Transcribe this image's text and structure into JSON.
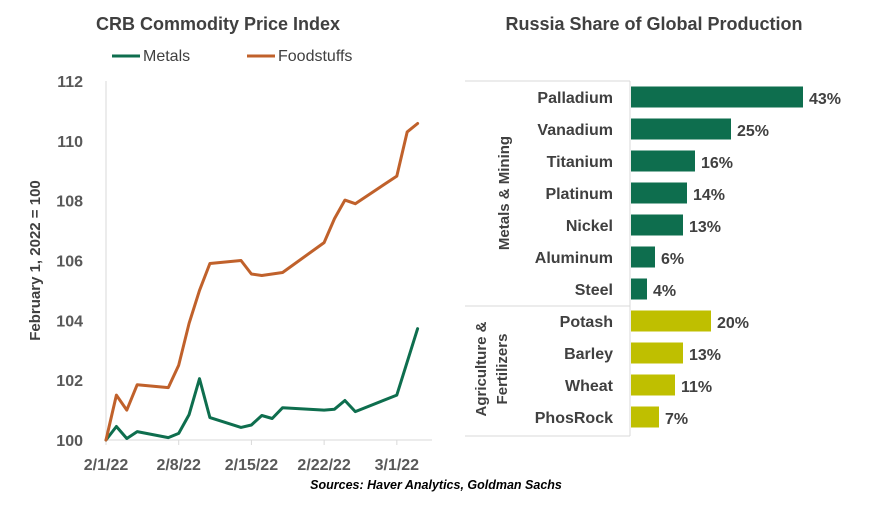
{
  "chart_data": [
    {
      "type": "line",
      "title": "CRB Commodity Price Index",
      "ylabel": "February 1, 2022 = 100",
      "xlabel": "",
      "ylim": [
        100,
        112
      ],
      "yticks": [
        "100",
        "102",
        "104",
        "106",
        "108",
        "110",
        "112"
      ],
      "xticks": [
        "2/1/22",
        "2/8/22",
        "2/15/22",
        "2/22/22",
        "3/1/22"
      ],
      "xlim": [
        "2022-02-01",
        "2022-03-04"
      ],
      "grid": false,
      "legend": "top-left",
      "series": [
        {
          "name": "Metals",
          "color": "#0e6e4e",
          "points": [
            [
              "2022-02-01",
              100.0
            ],
            [
              "2022-02-02",
              100.45
            ],
            [
              "2022-02-03",
              100.05
            ],
            [
              "2022-02-04",
              100.28
            ],
            [
              "2022-02-07",
              100.08
            ],
            [
              "2022-02-08",
              100.22
            ],
            [
              "2022-02-09",
              100.85
            ],
            [
              "2022-02-10",
              102.05
            ],
            [
              "2022-02-11",
              100.75
            ],
            [
              "2022-02-14",
              100.42
            ],
            [
              "2022-02-15",
              100.5
            ],
            [
              "2022-02-16",
              100.82
            ],
            [
              "2022-02-17",
              100.72
            ],
            [
              "2022-02-18",
              101.08
            ],
            [
              "2022-02-22",
              101.0
            ],
            [
              "2022-02-23",
              101.03
            ],
            [
              "2022-02-24",
              101.32
            ],
            [
              "2022-02-25",
              100.95
            ],
            [
              "2022-03-01",
              101.5
            ],
            [
              "2022-03-03",
              103.72
            ]
          ]
        },
        {
          "name": "Foodstuffs",
          "color": "#c0612b",
          "points": [
            [
              "2022-02-01",
              100.0
            ],
            [
              "2022-02-02",
              101.5
            ],
            [
              "2022-02-03",
              101.0
            ],
            [
              "2022-02-04",
              101.85
            ],
            [
              "2022-02-07",
              101.75
            ],
            [
              "2022-02-08",
              102.5
            ],
            [
              "2022-02-09",
              103.9
            ],
            [
              "2022-02-10",
              105.0
            ],
            [
              "2022-02-11",
              105.9
            ],
            [
              "2022-02-14",
              106.0
            ],
            [
              "2022-02-15",
              105.55
            ],
            [
              "2022-02-16",
              105.5
            ],
            [
              "2022-02-18",
              105.6
            ],
            [
              "2022-02-22",
              106.6
            ],
            [
              "2022-02-23",
              107.4
            ],
            [
              "2022-02-24",
              108.02
            ],
            [
              "2022-02-25",
              107.9
            ],
            [
              "2022-03-01",
              108.82
            ],
            [
              "2022-03-02",
              110.3
            ],
            [
              "2022-03-03",
              110.58
            ]
          ]
        }
      ]
    },
    {
      "type": "bar",
      "orientation": "horizontal",
      "title": "Russia Share of Global Production",
      "unit": "%",
      "groups": [
        {
          "name": "Metals & Mining",
          "color": "#0e6e4e",
          "categories": [
            "Palladium",
            "Vanadium",
            "Titanium",
            "Platinum",
            "Nickel",
            "Aluminum",
            "Steel"
          ],
          "values": [
            43,
            25,
            16,
            14,
            13,
            6,
            4
          ],
          "labels": [
            "43%",
            "25%",
            "16%",
            "14%",
            "13%",
            "6%",
            "4%"
          ]
        },
        {
          "name": "Agriculture & Fertilizers",
          "name_lines": [
            "Agriculture &",
            "Fertilizers"
          ],
          "color": "#bfbf00",
          "categories": [
            "Potash",
            "Barley",
            "Wheat",
            "PhosRock"
          ],
          "values": [
            20,
            13,
            11,
            7
          ],
          "labels": [
            "20%",
            "13%",
            "11%",
            "7%"
          ]
        }
      ]
    }
  ],
  "footer": {
    "source": "Sources: Haver Analytics, Goldman Sachs"
  }
}
